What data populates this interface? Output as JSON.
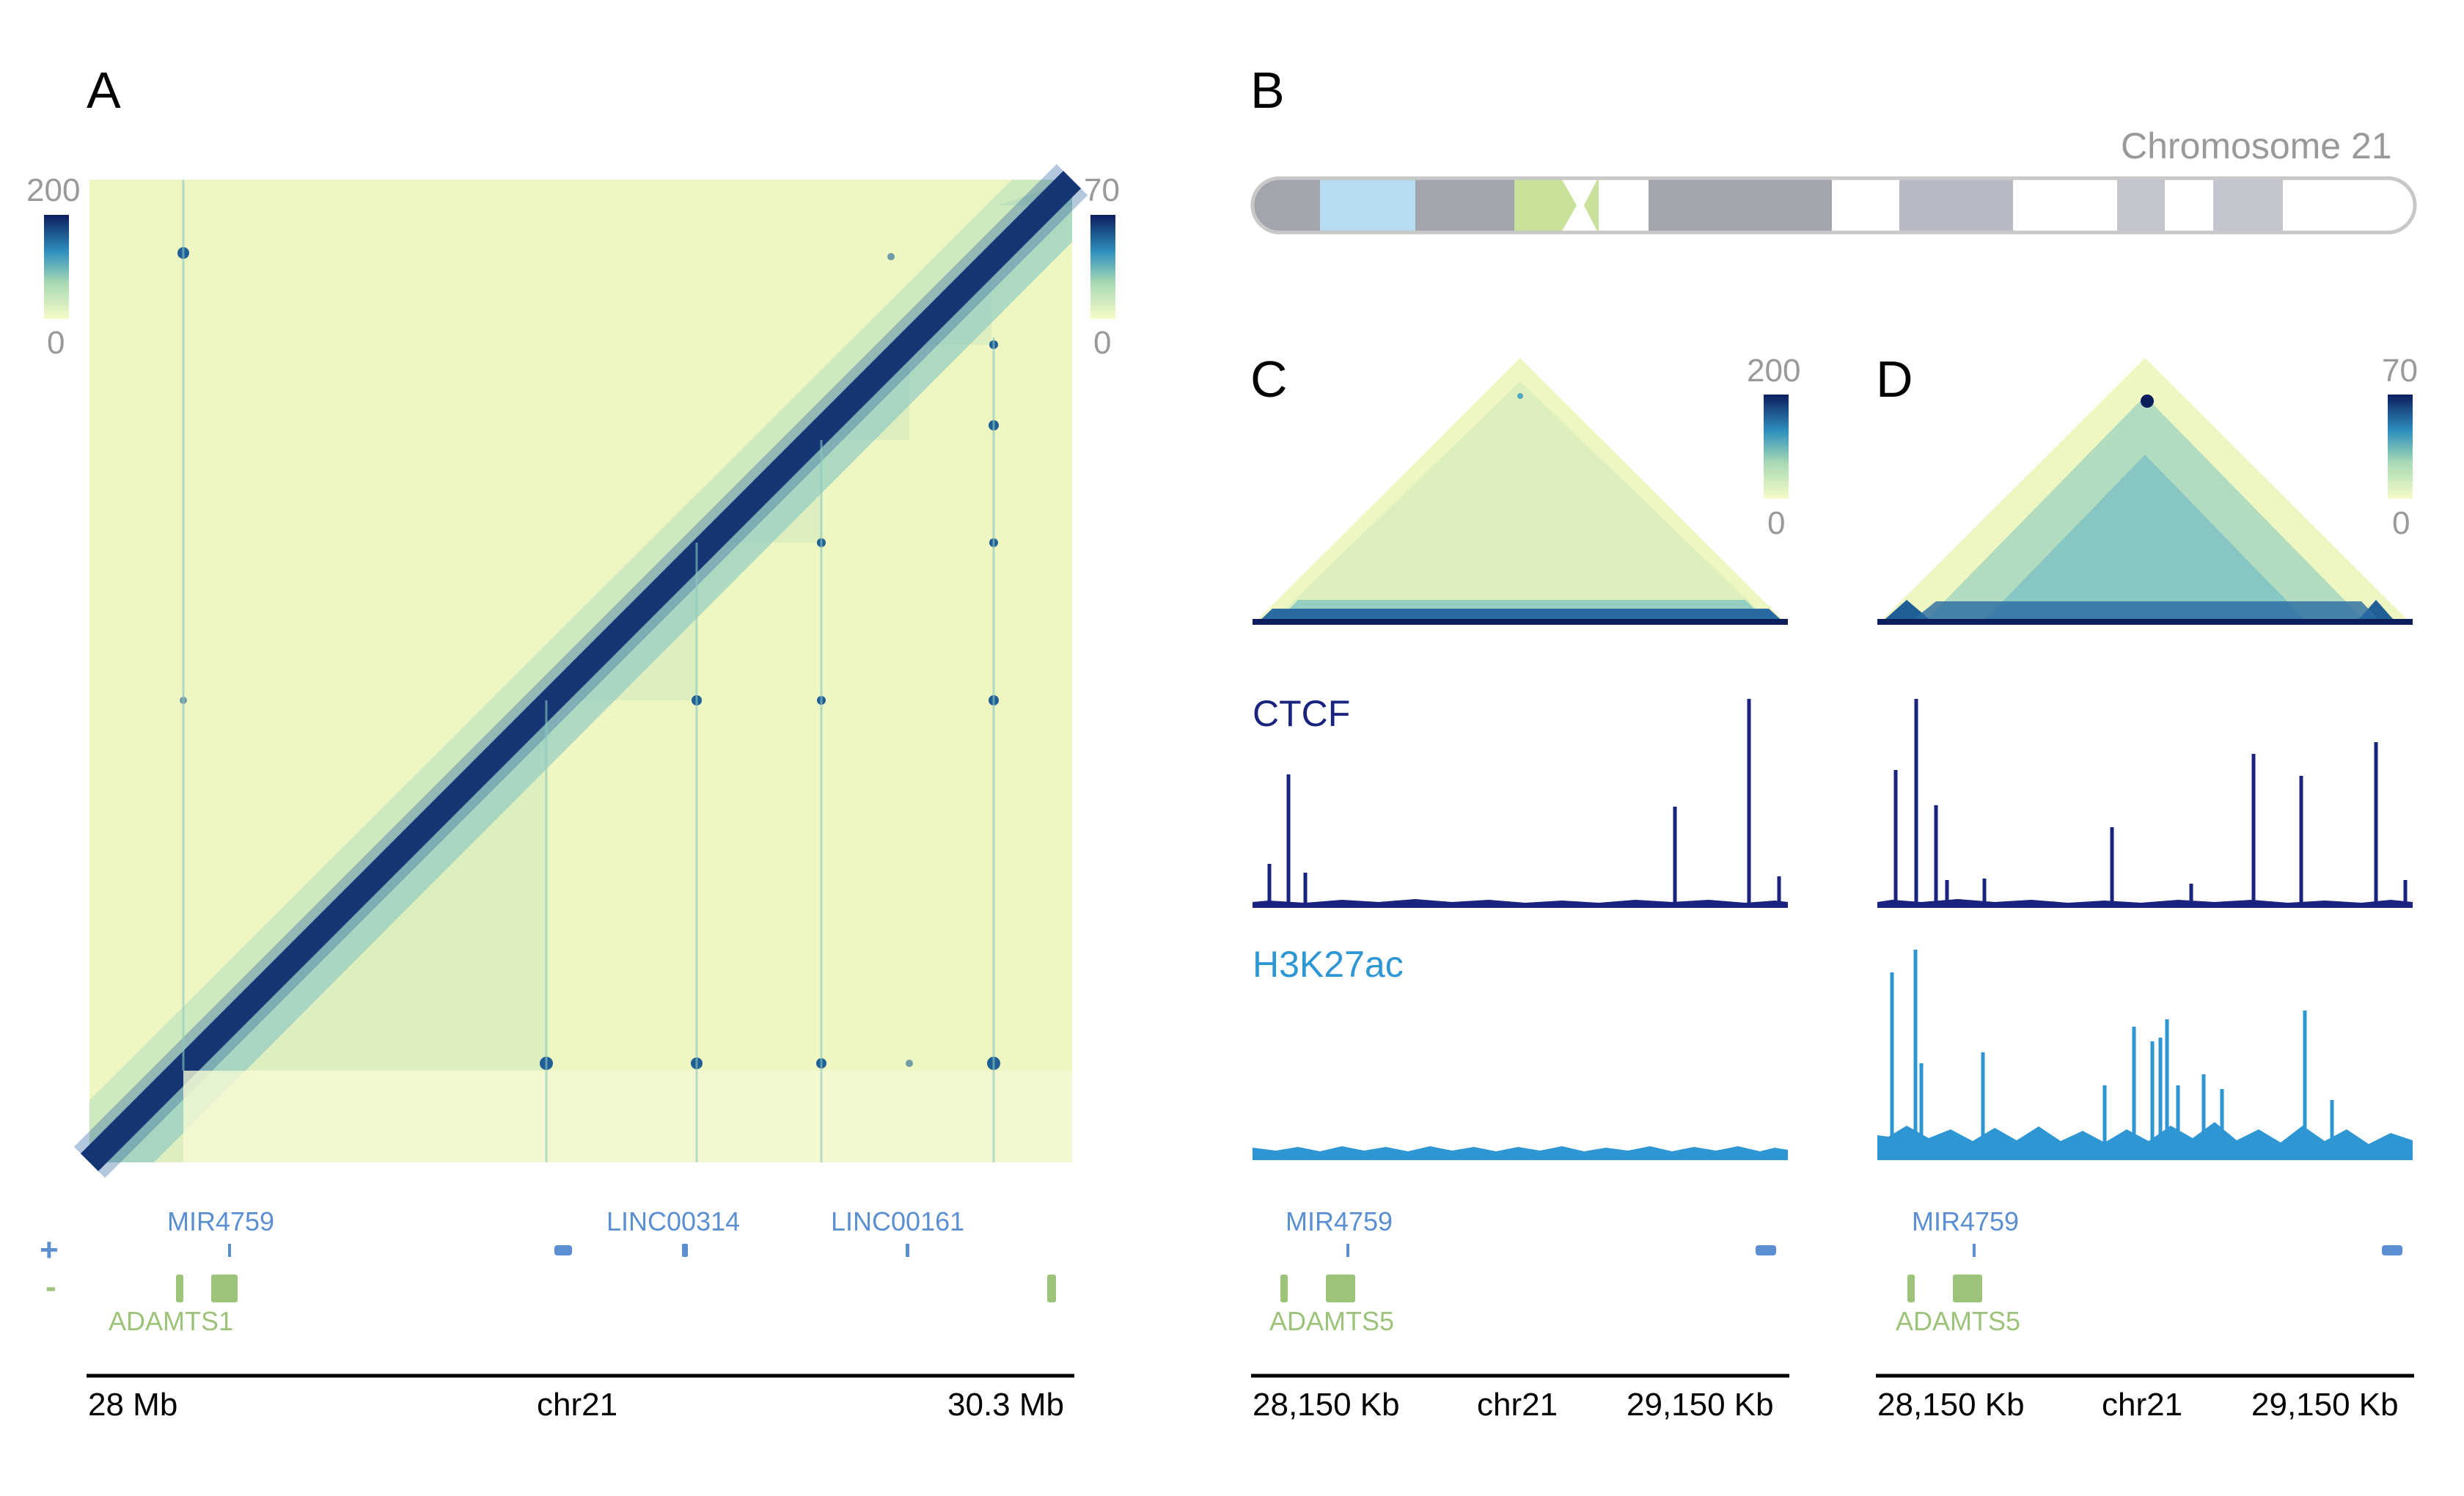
{
  "panels": {
    "a": {
      "label": "A"
    },
    "b": {
      "label": "B",
      "chromosome_title": "Chromosome 21"
    },
    "c": {
      "label": "C"
    },
    "d": {
      "label": "D"
    }
  },
  "heatmap_a": {
    "scale_left": {
      "max": "200",
      "min": "0"
    },
    "scale_right": {
      "max": "70",
      "min": "0"
    },
    "strand_plus": "+",
    "strand_minus": "-",
    "genes": [
      "MIR4759",
      "LINC00314",
      "LINC00161",
      "ADAMTS1"
    ],
    "axis": {
      "left": "28 Mb",
      "center": "chr21",
      "right": "30.3 Mb"
    }
  },
  "panel_c": {
    "scale": {
      "max": "200",
      "min": "0"
    },
    "tracks": {
      "ctcf": "CTCF",
      "h3k27ac": "H3K27ac"
    },
    "genes": [
      "MIR4759",
      "ADAMTS5"
    ],
    "axis": {
      "left": "28,150 Kb",
      "center": "chr21",
      "right": "29,150 Kb"
    }
  },
  "panel_d": {
    "scale": {
      "max": "70",
      "min": "0"
    },
    "genes": [
      "MIR4759",
      "ADAMTS5"
    ],
    "axis": {
      "left": "28,150 Kb",
      "center": "chr21",
      "right": "29,150 Kb"
    }
  },
  "colors": {
    "low": "#f2f8c4",
    "mid": "#4fa9c4",
    "high": "#0c1d5e",
    "ctcf": "#1a237e",
    "h3k27ac": "#2e96d3",
    "gene_plus": "#5b8fd1",
    "gene_minus": "#9dc27a"
  }
}
